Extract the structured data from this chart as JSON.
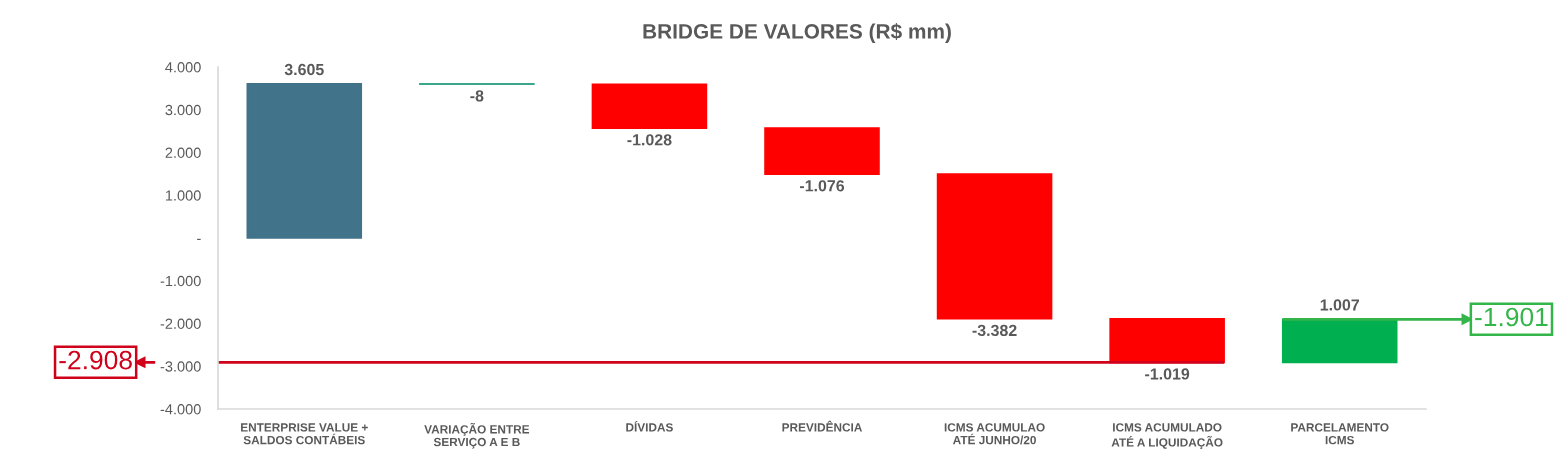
{
  "chart_data": {
    "type": "bar",
    "title": "BRIDGE DE VALORES (R$ mm)",
    "categories": [
      "ENTERPRISE VALUE +\nSALDOS CONTÁBEIS",
      "VARIAÇÃO ENTRE\nSERVIÇO A E B",
      "DÍVIDAS",
      "PREVIDÊNCIA",
      "ICMS ACUMULAO\nATÉ JUNHO/20",
      "ICMS ACUMULADO\nATÉ A LIQUIDAÇÃO",
      "PARCELAMENTO\nICMS"
    ],
    "values": [
      3605,
      -8,
      -1028,
      -1076,
      -3382,
      -1019,
      1007
    ],
    "base": [
      0,
      3605,
      3597,
      2569,
      1493,
      -1889,
      -2908
    ],
    "colors": [
      "#41738a",
      "#3aa68a",
      "#ff0000",
      "#ff0000",
      "#ff0000",
      "#ff0000",
      "#00b050"
    ],
    "value_labels": [
      "3.605",
      "-8",
      "-1.028",
      "-1.076",
      "-3.382",
      "-1.019",
      "1.007"
    ],
    "ylim": [
      -4000,
      4000
    ],
    "yticks": [
      {
        "value": -4000,
        "label": "-4.000"
      },
      {
        "value": -3000,
        "label": "-3.000"
      },
      {
        "value": -2000,
        "label": "-2.000"
      },
      {
        "value": -1000,
        "label": "-1.000"
      },
      {
        "value": 0,
        "label": "-"
      },
      {
        "value": 1000,
        "label": "1.000"
      },
      {
        "value": 2000,
        "label": "2.000"
      },
      {
        "value": 3000,
        "label": "3.000"
      },
      {
        "value": 4000,
        "label": "4.000"
      }
    ],
    "grid": false,
    "ref_lines": [
      {
        "axis": "y",
        "value": -2908,
        "label": "-2.908",
        "color": "#d0021b"
      },
      {
        "axis": "y",
        "value": -1901,
        "label": "-1.901",
        "color": "#34b54a"
      }
    ]
  }
}
